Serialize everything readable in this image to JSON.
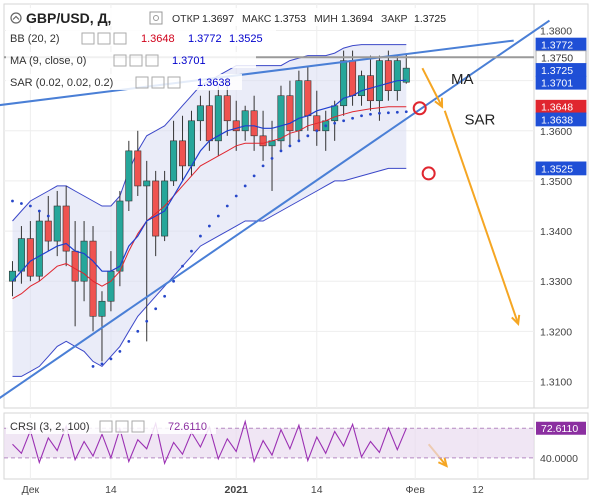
{
  "chart_data": {
    "type": "candlestick",
    "symbol": "GBP/USD, Д,",
    "ohlc_labels": {
      "open_label": "ОТКР",
      "open": "1.3697",
      "high_label": "МАКС",
      "high": "1.3753",
      "low_label": "МИН",
      "low": "1.3694",
      "close_label": "ЗАКР",
      "close": "1.3725"
    },
    "indicators": {
      "bb": {
        "label": "BB (20, 2)",
        "values": [
          "1.3648",
          "1.3772",
          "1.3525"
        ],
        "colors": [
          "#d0021b",
          "#0000cc",
          "#0000cc"
        ]
      },
      "ma": {
        "label": "MA (9, close, 0)",
        "value": "1.3701",
        "color": "#0000cc"
      },
      "sar": {
        "label": "SAR (0.02, 0.02, 0.2)",
        "value": "1.3638",
        "color": "#0000cc"
      }
    },
    "price_axis": {
      "ticks": [
        "1.3800",
        "1.3700",
        "1.3600",
        "1.3500",
        "1.3400",
        "1.3300",
        "1.3200",
        "1.3100"
      ],
      "tick_values": [
        1.38,
        1.37,
        1.36,
        1.35,
        1.34,
        1.33,
        1.32,
        1.31
      ],
      "ylim": [
        1.3055,
        1.3845
      ]
    },
    "price_badges": [
      {
        "text": "1.3772",
        "value": 1.3772,
        "bg": "#1f4fd6",
        "fg": "#ffffff"
      },
      {
        "text": "1.3750",
        "value": 1.375,
        "bg": "#ffffff",
        "fg": "#333333"
      },
      {
        "text": "1.3725",
        "value": 1.3725,
        "bg": "#1f4fd6",
        "fg": "#ffffff"
      },
      {
        "text": "1.3701",
        "value": 1.3701,
        "bg": "#1f4fd6",
        "fg": "#ffffff"
      },
      {
        "text": "1.3648",
        "value": 1.3648,
        "bg": "#e0262f",
        "fg": "#ffffff"
      },
      {
        "text": "1.3638",
        "value": 1.3638,
        "bg": "#1f4fd6",
        "fg": "#ffffff"
      },
      {
        "text": "1.3525",
        "value": 1.3525,
        "bg": "#1f4fd6",
        "fg": "#ffffff"
      }
    ],
    "time_axis": {
      "ticks": [
        {
          "label": "Дек",
          "index": 2
        },
        {
          "label": "14",
          "index": 11
        },
        {
          "label": "2021",
          "index": 25,
          "bold": true
        },
        {
          "label": "14",
          "index": 34
        },
        {
          "label": "Фев",
          "index": 45
        },
        {
          "label": "12",
          "index": 52
        }
      ],
      "total_slots": 58
    },
    "candles": [
      {
        "o": 1.33,
        "h": 1.334,
        "l": 1.327,
        "c": 1.332
      },
      {
        "o": 1.332,
        "h": 1.341,
        "l": 1.3295,
        "c": 1.3385
      },
      {
        "o": 1.3385,
        "h": 1.342,
        "l": 1.33,
        "c": 1.331
      },
      {
        "o": 1.331,
        "h": 1.344,
        "l": 1.33,
        "c": 1.342
      },
      {
        "o": 1.342,
        "h": 1.347,
        "l": 1.336,
        "c": 1.338
      },
      {
        "o": 1.338,
        "h": 1.348,
        "l": 1.335,
        "c": 1.345
      },
      {
        "o": 1.345,
        "h": 1.349,
        "l": 1.333,
        "c": 1.336
      },
      {
        "o": 1.336,
        "h": 1.342,
        "l": 1.321,
        "c": 1.33
      },
      {
        "o": 1.33,
        "h": 1.342,
        "l": 1.326,
        "c": 1.338
      },
      {
        "o": 1.338,
        "h": 1.341,
        "l": 1.32,
        "c": 1.323
      },
      {
        "o": 1.323,
        "h": 1.328,
        "l": 1.314,
        "c": 1.326
      },
      {
        "o": 1.326,
        "h": 1.336,
        "l": 1.324,
        "c": 1.332
      },
      {
        "o": 1.332,
        "h": 1.348,
        "l": 1.329,
        "c": 1.346
      },
      {
        "o": 1.346,
        "h": 1.358,
        "l": 1.344,
        "c": 1.356
      },
      {
        "o": 1.356,
        "h": 1.36,
        "l": 1.347,
        "c": 1.349
      },
      {
        "o": 1.349,
        "h": 1.354,
        "l": 1.318,
        "c": 1.35
      },
      {
        "o": 1.35,
        "h": 1.352,
        "l": 1.335,
        "c": 1.339
      },
      {
        "o": 1.339,
        "h": 1.352,
        "l": 1.338,
        "c": 1.35
      },
      {
        "o": 1.35,
        "h": 1.362,
        "l": 1.349,
        "c": 1.358
      },
      {
        "o": 1.358,
        "h": 1.363,
        "l": 1.35,
        "c": 1.353
      },
      {
        "o": 1.353,
        "h": 1.364,
        "l": 1.351,
        "c": 1.362
      },
      {
        "o": 1.362,
        "h": 1.367,
        "l": 1.358,
        "c": 1.365
      },
      {
        "o": 1.365,
        "h": 1.368,
        "l": 1.356,
        "c": 1.358
      },
      {
        "o": 1.358,
        "h": 1.369,
        "l": 1.355,
        "c": 1.367
      },
      {
        "o": 1.367,
        "h": 1.371,
        "l": 1.359,
        "c": 1.362
      },
      {
        "o": 1.362,
        "h": 1.366,
        "l": 1.356,
        "c": 1.36
      },
      {
        "o": 1.36,
        "h": 1.365,
        "l": 1.358,
        "c": 1.364
      },
      {
        "o": 1.364,
        "h": 1.367,
        "l": 1.356,
        "c": 1.359
      },
      {
        "o": 1.359,
        "h": 1.364,
        "l": 1.354,
        "c": 1.357
      },
      {
        "o": 1.357,
        "h": 1.362,
        "l": 1.348,
        "c": 1.358
      },
      {
        "o": 1.358,
        "h": 1.369,
        "l": 1.356,
        "c": 1.367
      },
      {
        "o": 1.367,
        "h": 1.37,
        "l": 1.357,
        "c": 1.36
      },
      {
        "o": 1.36,
        "h": 1.372,
        "l": 1.358,
        "c": 1.37
      },
      {
        "o": 1.37,
        "h": 1.373,
        "l": 1.36,
        "c": 1.363
      },
      {
        "o": 1.363,
        "h": 1.368,
        "l": 1.357,
        "c": 1.36
      },
      {
        "o": 1.36,
        "h": 1.364,
        "l": 1.356,
        "c": 1.362
      },
      {
        "o": 1.362,
        "h": 1.366,
        "l": 1.358,
        "c": 1.365
      },
      {
        "o": 1.365,
        "h": 1.376,
        "l": 1.363,
        "c": 1.374
      },
      {
        "o": 1.374,
        "h": 1.376,
        "l": 1.365,
        "c": 1.367
      },
      {
        "o": 1.367,
        "h": 1.372,
        "l": 1.365,
        "c": 1.371
      },
      {
        "o": 1.371,
        "h": 1.375,
        "l": 1.364,
        "c": 1.366
      },
      {
        "o": 1.366,
        "h": 1.375,
        "l": 1.362,
        "c": 1.374
      },
      {
        "o": 1.374,
        "h": 1.376,
        "l": 1.366,
        "c": 1.368
      },
      {
        "o": 1.368,
        "h": 1.375,
        "l": 1.366,
        "c": 1.374
      },
      {
        "o": 1.3697,
        "h": 1.3753,
        "l": 1.3694,
        "c": 1.3725
      }
    ],
    "bb_upper": [
      1.342,
      1.344,
      1.346,
      1.347,
      1.348,
      1.349,
      1.349,
      1.348,
      1.347,
      1.346,
      1.345,
      1.345,
      1.347,
      1.352,
      1.356,
      1.359,
      1.36,
      1.361,
      1.363,
      1.365,
      1.367,
      1.369,
      1.37,
      1.371,
      1.372,
      1.373,
      1.373,
      1.373,
      1.373,
      1.373,
      1.373,
      1.374,
      1.3745,
      1.375,
      1.375,
      1.375,
      1.3755,
      1.3765,
      1.377,
      1.3772,
      1.3772,
      1.3772,
      1.3772,
      1.3772,
      1.3772
    ],
    "bb_lower": [
      1.311,
      1.311,
      1.312,
      1.313,
      1.315,
      1.317,
      1.318,
      1.317,
      1.316,
      1.314,
      1.313,
      1.315,
      1.317,
      1.32,
      1.323,
      1.325,
      1.327,
      1.329,
      1.331,
      1.333,
      1.335,
      1.337,
      1.338,
      1.339,
      1.34,
      1.341,
      1.342,
      1.342,
      1.342,
      1.343,
      1.344,
      1.345,
      1.346,
      1.347,
      1.348,
      1.349,
      1.35,
      1.35,
      1.3505,
      1.351,
      1.3515,
      1.352,
      1.3525,
      1.3525,
      1.3525
    ],
    "bb_middle": [
      1.3265,
      1.3275,
      1.329,
      1.33,
      1.3315,
      1.333,
      1.3335,
      1.3325,
      1.3315,
      1.33,
      1.329,
      1.33,
      1.332,
      1.336,
      1.3395,
      1.342,
      1.3435,
      1.345,
      1.347,
      1.349,
      1.351,
      1.353,
      1.354,
      1.355,
      1.356,
      1.357,
      1.3575,
      1.3575,
      1.3575,
      1.358,
      1.3585,
      1.3595,
      1.36,
      1.361,
      1.3615,
      1.362,
      1.3628,
      1.3633,
      1.3638,
      1.3641,
      1.3644,
      1.3646,
      1.3648,
      1.3648,
      1.3648
    ],
    "ma9": [
      1.33,
      1.332,
      1.334,
      1.335,
      1.336,
      1.337,
      1.3375,
      1.336,
      1.3355,
      1.334,
      1.332,
      1.332,
      1.333,
      1.337,
      1.339,
      1.342,
      1.343,
      1.344,
      1.347,
      1.35,
      1.353,
      1.356,
      1.358,
      1.359,
      1.36,
      1.3605,
      1.361,
      1.361,
      1.3605,
      1.3605,
      1.361,
      1.3615,
      1.3625,
      1.363,
      1.364,
      1.3645,
      1.365,
      1.3665,
      1.367,
      1.368,
      1.3685,
      1.369,
      1.3695,
      1.37,
      1.3701
    ],
    "sar": [
      1.346,
      1.3455,
      1.345,
      1.344,
      1.343,
      null,
      null,
      null,
      null,
      1.313,
      1.3135,
      1.3145,
      1.316,
      1.318,
      1.32,
      1.322,
      1.3245,
      1.327,
      1.33,
      1.333,
      1.336,
      1.339,
      1.341,
      1.343,
      1.345,
      1.347,
      1.349,
      1.351,
      1.353,
      1.3545,
      1.356,
      1.357,
      1.358,
      1.359,
      1.36,
      1.361,
      1.3615,
      1.362,
      1.3625,
      1.363,
      1.3633,
      1.3635,
      1.3636,
      1.3637,
      1.3638
    ],
    "trendline_upper": [
      {
        "i": -2,
        "v": 1.365
      },
      {
        "i": 56,
        "v": 1.378
      }
    ],
    "trendline_lower": [
      {
        "i": -2,
        "v": 1.306
      },
      {
        "i": 60,
        "v": 1.382
      }
    ],
    "circles": [
      {
        "i": 45.5,
        "v": 1.3645
      },
      {
        "i": 46.5,
        "v": 1.3515
      }
    ],
    "projection_arrows": [
      {
        "from": {
          "i": 45.8,
          "v": 1.3725
        },
        "to": {
          "i": 48,
          "v": 1.3648
        }
      },
      {
        "from": {
          "i": 48.3,
          "v": 1.364
        },
        "to": {
          "i": 56.5,
          "v": 1.3215
        }
      }
    ],
    "annotations": [
      {
        "text": "MA",
        "i": 49,
        "v": 1.3705
      },
      {
        "text": "SAR",
        "i": 50.5,
        "v": 1.3625
      }
    ],
    "crsi": {
      "label": "CRSI (3, 2, 100)",
      "value": "72.6110",
      "value_num": 72.611,
      "ticks": [
        "40.0000"
      ],
      "tick_values": [
        40
      ],
      "ylim": [
        20,
        85
      ],
      "band": [
        40,
        72.6
      ],
      "values": [
        55,
        45,
        70,
        35,
        62,
        48,
        75,
        38,
        58,
        42,
        66,
        40,
        72,
        36,
        60,
        50,
        78,
        34,
        57,
        44,
        68,
        52,
        74,
        39,
        61,
        47,
        80,
        36,
        59,
        43,
        71,
        50,
        76,
        37,
        63,
        45,
        69,
        53,
        77,
        41,
        58,
        46,
        73,
        49,
        72.6
      ],
      "arrow": {
        "from": {
          "i": 46.5,
          "v": 55
        },
        "to": {
          "i": 48.5,
          "v": 31
        }
      }
    }
  }
}
